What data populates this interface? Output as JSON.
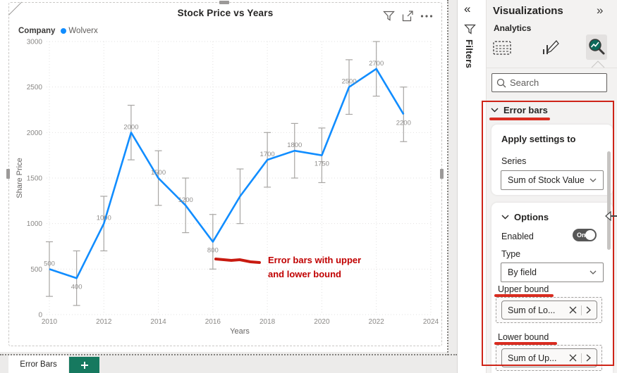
{
  "chart": {
    "title": "Stock Price vs Years",
    "legend": {
      "field_label": "Company",
      "series_label": "Wolverx",
      "series_color": "#118DFF"
    },
    "annotation": {
      "line1": "Error bars with upper",
      "line2": "and lower bound",
      "color": "#C00000"
    },
    "visual_header_icons": [
      "filter",
      "focus-mode",
      "more-options"
    ]
  },
  "chart_data": {
    "type": "line",
    "title": "Stock Price vs Years",
    "series_name": "Wolverx",
    "x": [
      2010,
      2011,
      2012,
      2013,
      2014,
      2015,
      2016,
      2017,
      2018,
      2019,
      2020,
      2021,
      2022,
      2023
    ],
    "values": [
      500,
      400,
      1000,
      2000,
      1500,
      1200,
      800,
      1300,
      1700,
      1800,
      1750,
      2500,
      2700,
      2200
    ],
    "data_labels": [
      "500",
      "400",
      "1000",
      "2000",
      "1500",
      "1200",
      "800",
      null,
      "1700",
      "1800",
      "1750",
      "2500",
      "2700",
      "2200"
    ],
    "label_positions": [
      "above",
      "below",
      "above",
      "above",
      "above",
      "above",
      "below",
      null,
      "above",
      "above",
      "below",
      "above",
      "above",
      "below"
    ],
    "error_bar_margin": 300,
    "xlabel": "Years",
    "ylabel": "Share Price",
    "xticks": [
      2010,
      2012,
      2014,
      2016,
      2018,
      2020,
      2022,
      2024
    ],
    "yticks": [
      0,
      500,
      1000,
      1500,
      2000,
      2500,
      3000
    ],
    "xlim": [
      2009.9,
      2024.1
    ],
    "ylim": [
      0,
      3000
    ],
    "grid": true,
    "legend_position": "top-left",
    "line_color": "#118DFF",
    "error_bar_color": "#A8A6A4",
    "annotation_stroke_color": "#C81A10"
  },
  "filters_pane": {
    "label": "Filters",
    "collapse_icon": "«"
  },
  "visualizations_pane": {
    "title": "Visualizations",
    "collapse_icon": "»",
    "section_label": "Analytics",
    "search_placeholder": "Search",
    "error_bars_header": "Error bars",
    "apply_settings": {
      "title": "Apply settings to",
      "series_label": "Series",
      "series_value": "Sum of Stock Value"
    },
    "options": {
      "header": "Options",
      "enabled_label": "Enabled",
      "enabled_value": "On",
      "type_label": "Type",
      "type_value": "By field",
      "upper_bound_label": "Upper bound",
      "upper_bound_value": "Sum of Lo...",
      "lower_bound_label": "Lower bound",
      "lower_bound_value": "Sum of Up..."
    }
  },
  "page_bar": {
    "active_page": "Error Bars"
  },
  "colors": {
    "accent_blue": "#118DFF",
    "annotation_red": "#CE2418",
    "marker_red": "#D92C20",
    "new_page_green": "#16795F",
    "pane_bg": "#F3F2F1"
  }
}
